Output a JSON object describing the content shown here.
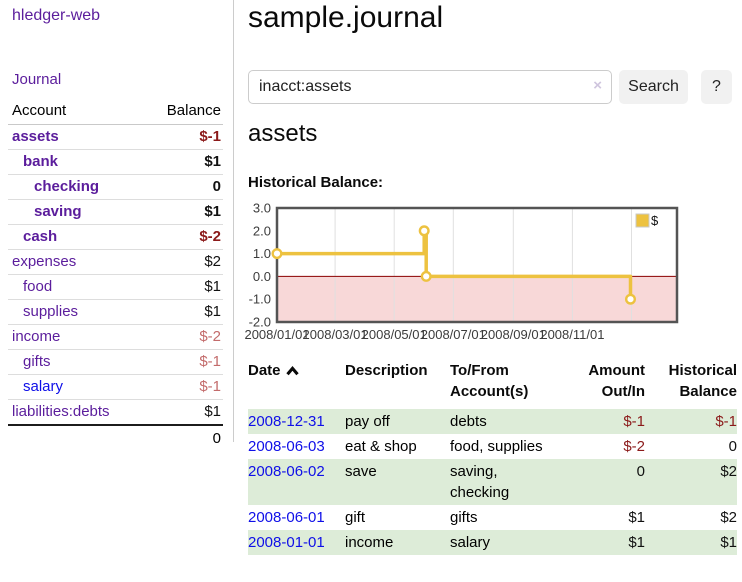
{
  "app": {
    "title": "hledger-web",
    "journal_link": "Journal"
  },
  "sidebar": {
    "headers": {
      "account": "Account",
      "balance": "Balance"
    },
    "accounts": [
      {
        "name": "assets",
        "depth": 1,
        "balance": "$-1",
        "bold": true,
        "balance_tone": "negative-strong"
      },
      {
        "name": "bank",
        "depth": 2,
        "balance": "$1",
        "bold": true,
        "balance_tone": "normal"
      },
      {
        "name": "checking",
        "depth": 3,
        "balance": "0",
        "bold": true,
        "balance_tone": "normal"
      },
      {
        "name": "saving",
        "depth": 3,
        "balance": "$1",
        "bold": true,
        "balance_tone": "normal"
      },
      {
        "name": "cash",
        "depth": 2,
        "balance": "$-2",
        "bold": true,
        "balance_tone": "negative-strong"
      },
      {
        "name": "expenses",
        "depth": 1,
        "balance": "$2",
        "bold": false,
        "balance_tone": "normal"
      },
      {
        "name": "food",
        "depth": 2,
        "balance": "$1",
        "bold": false,
        "balance_tone": "normal"
      },
      {
        "name": "supplies",
        "depth": 2,
        "balance": "$1",
        "bold": false,
        "balance_tone": "normal"
      },
      {
        "name": "income",
        "depth": 1,
        "balance": "$-2",
        "bold": false,
        "balance_tone": "negative-soft"
      },
      {
        "name": "gifts",
        "depth": 2,
        "balance": "$-1",
        "bold": false,
        "balance_tone": "negative-soft"
      },
      {
        "name": "salary",
        "depth": 2,
        "balance": "$-1",
        "bold": false,
        "balance_tone": "negative-soft",
        "link_style": "blue"
      },
      {
        "name": "liabilities:debts",
        "depth": 1,
        "balance": "$1",
        "bold": false,
        "balance_tone": "normal"
      }
    ],
    "total": "0"
  },
  "main": {
    "title": "sample.journal",
    "search": {
      "value": "inacct:assets",
      "clear_icon": "×",
      "search_button": "Search",
      "help_button": "?"
    },
    "account_heading": "assets",
    "section_label": "Historical Balance:"
  },
  "chart_data": {
    "type": "line",
    "line_style": "step",
    "title": "Historical Balance",
    "legend": [
      {
        "label": "$",
        "color": "#edc240"
      }
    ],
    "series": [
      {
        "name": "$",
        "points": [
          {
            "date": "2008-01-01",
            "value": 1
          },
          {
            "date": "2008-06-01",
            "value": 2
          },
          {
            "date": "2008-06-03",
            "value": 0
          },
          {
            "date": "2008-12-31",
            "value": -1
          }
        ]
      }
    ],
    "ylim": [
      -2,
      3
    ],
    "yticks": [
      "3.0",
      "2.0",
      "1.0",
      "0.0",
      "-1.0",
      "-2.0"
    ],
    "xticks": [
      {
        "label": "2008/01/01",
        "date": "2008-01-01"
      },
      {
        "label": "2008/03/01",
        "date": "2008-03-01"
      },
      {
        "label": "2008/05/01",
        "date": "2008-05-01"
      },
      {
        "label": "2008/07/01",
        "date": "2008-07-01"
      },
      {
        "label": "2008/09/01",
        "date": "2008-09-01"
      },
      {
        "label": "2008/11/01",
        "date": "2008-11-01"
      }
    ],
    "grid": true,
    "legend_position": "top-right",
    "colors": {
      "line": "#edc240",
      "negative_fill": "#f8d8d8",
      "zero_line": "#8b0000",
      "plot_border": "#545454",
      "grid": "#e0e0e0"
    }
  },
  "register": {
    "headers": [
      "Date",
      "Description",
      "To/From Account(s)",
      "Amount Out/In",
      "Historical Balance"
    ],
    "sort_icon": "chevron-up",
    "rows": [
      {
        "date": "2008-12-31",
        "description": "pay off",
        "accounts": "debts",
        "amount": "$-1",
        "balance": "$-1"
      },
      {
        "date": "2008-06-03",
        "description": "eat & shop",
        "accounts": "food, supplies",
        "amount": "$-2",
        "balance": "0"
      },
      {
        "date": "2008-06-02",
        "description": "save",
        "accounts": "saving, checking",
        "amount": "0",
        "balance": "$2"
      },
      {
        "date": "2008-06-01",
        "description": "gift",
        "accounts": "gifts",
        "amount": "$1",
        "balance": "$2"
      },
      {
        "date": "2008-01-01",
        "description": "income",
        "accounts": "salary",
        "amount": "$1",
        "balance": "$1"
      }
    ]
  }
}
